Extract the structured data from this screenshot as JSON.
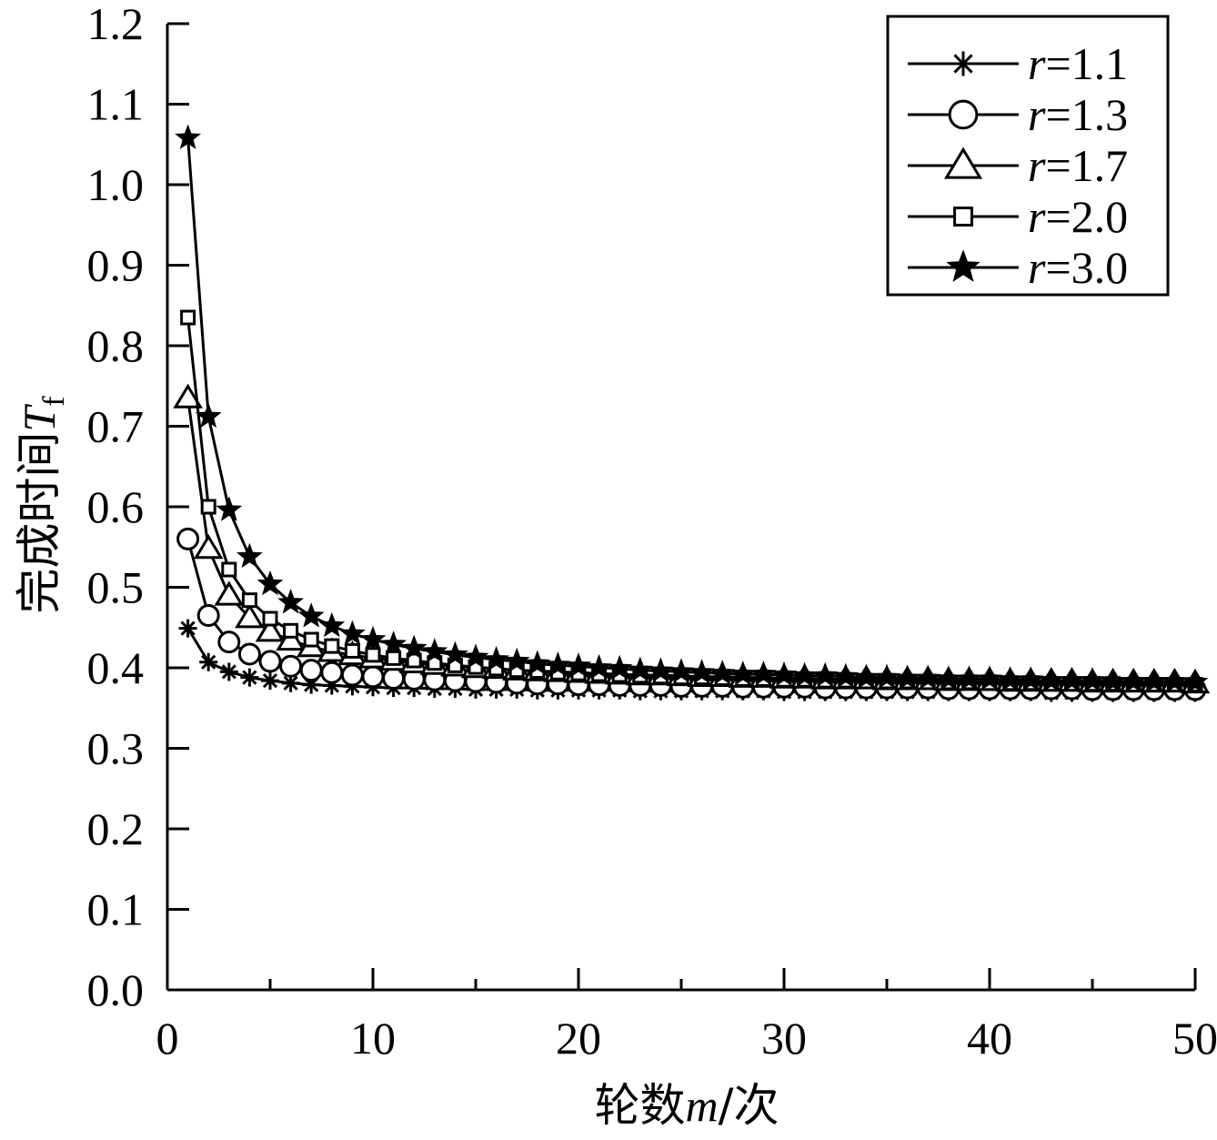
{
  "chart_data": {
    "type": "line",
    "title": "",
    "xlabel": {
      "prefix": "轮数",
      "var": "m",
      "suffix": "/次"
    },
    "ylabel": {
      "prefix": "完成时间",
      "var": "T",
      "sub": "f"
    },
    "xlim": [
      0,
      50
    ],
    "ylim": [
      0,
      1.2
    ],
    "x_ticks": [
      "0",
      "10",
      "20",
      "30",
      "40",
      "50"
    ],
    "y_ticks": [
      "0.0",
      "0.1",
      "0.2",
      "0.3",
      "0.4",
      "0.5",
      "0.6",
      "0.7",
      "0.8",
      "0.9",
      "1.0",
      "1.1",
      "1.2"
    ],
    "grid": false,
    "legend_position": "top-right",
    "x": [
      1,
      2,
      3,
      4,
      5,
      6,
      7,
      8,
      9,
      10,
      11,
      12,
      13,
      14,
      15,
      16,
      17,
      18,
      19,
      20,
      21,
      22,
      23,
      24,
      25,
      26,
      27,
      28,
      29,
      30,
      31,
      32,
      33,
      34,
      35,
      36,
      37,
      38,
      39,
      40,
      41,
      42,
      43,
      44,
      45,
      46,
      47,
      48,
      49,
      50
    ],
    "series": [
      {
        "name": "r=1.1",
        "var": "r",
        "eq": "=1.1",
        "marker": "asterisk",
        "values": [
          0.449,
          0.407,
          0.395,
          0.388,
          0.384,
          0.381,
          0.379,
          0.378,
          0.377,
          0.376,
          0.375,
          0.375,
          0.374,
          0.374,
          0.373,
          0.373,
          0.373,
          0.372,
          0.372,
          0.372,
          0.372,
          0.372,
          0.371,
          0.371,
          0.371,
          0.371,
          0.371,
          0.371,
          0.371,
          0.37,
          0.37,
          0.37,
          0.37,
          0.37,
          0.37,
          0.37,
          0.37,
          0.37,
          0.37,
          0.37,
          0.37,
          0.37,
          0.369,
          0.369,
          0.369,
          0.369,
          0.369,
          0.369,
          0.369,
          0.369
        ]
      },
      {
        "name": "r=1.3",
        "var": "r",
        "eq": "=1.3",
        "marker": "circle",
        "values": [
          0.56,
          0.465,
          0.432,
          0.417,
          0.408,
          0.402,
          0.397,
          0.394,
          0.391,
          0.389,
          0.387,
          0.386,
          0.385,
          0.384,
          0.383,
          0.382,
          0.381,
          0.38,
          0.38,
          0.379,
          0.379,
          0.378,
          0.378,
          0.378,
          0.377,
          0.377,
          0.377,
          0.376,
          0.376,
          0.376,
          0.376,
          0.375,
          0.375,
          0.375,
          0.375,
          0.375,
          0.375,
          0.374,
          0.374,
          0.374,
          0.374,
          0.374,
          0.374,
          0.374,
          0.373,
          0.373,
          0.373,
          0.373,
          0.373,
          0.373
        ]
      },
      {
        "name": "r=1.7",
        "var": "r",
        "eq": "=1.7",
        "marker": "triangle",
        "values": [
          0.735,
          0.548,
          0.49,
          0.462,
          0.445,
          0.434,
          0.426,
          0.42,
          0.416,
          0.412,
          0.409,
          0.406,
          0.404,
          0.402,
          0.4,
          0.399,
          0.397,
          0.396,
          0.395,
          0.394,
          0.393,
          0.392,
          0.391,
          0.391,
          0.39,
          0.389,
          0.389,
          0.388,
          0.388,
          0.387,
          0.387,
          0.386,
          0.386,
          0.386,
          0.385,
          0.385,
          0.385,
          0.384,
          0.384,
          0.384,
          0.383,
          0.383,
          0.383,
          0.383,
          0.382,
          0.382,
          0.382,
          0.382,
          0.382,
          0.381
        ]
      },
      {
        "name": "r=2.0",
        "var": "r",
        "eq": "=2.0",
        "marker": "square",
        "values": [
          0.835,
          0.6,
          0.522,
          0.484,
          0.461,
          0.446,
          0.435,
          0.427,
          0.421,
          0.416,
          0.412,
          0.409,
          0.406,
          0.403,
          0.401,
          0.399,
          0.397,
          0.396,
          0.394,
          0.393,
          0.392,
          0.391,
          0.39,
          0.389,
          0.388,
          0.388,
          0.387,
          0.386,
          0.386,
          0.385,
          0.385,
          0.384,
          0.384,
          0.383,
          0.383,
          0.383,
          0.382,
          0.382,
          0.382,
          0.381,
          0.381,
          0.381,
          0.38,
          0.38,
          0.38,
          0.38,
          0.379,
          0.379,
          0.379,
          0.379
        ]
      },
      {
        "name": "r=3.0",
        "var": "r",
        "eq": "=3.0",
        "marker": "star",
        "values": [
          1.058,
          0.712,
          0.596,
          0.538,
          0.504,
          0.481,
          0.464,
          0.452,
          0.442,
          0.435,
          0.429,
          0.424,
          0.42,
          0.416,
          0.413,
          0.41,
          0.408,
          0.405,
          0.403,
          0.402,
          0.4,
          0.399,
          0.397,
          0.396,
          0.395,
          0.394,
          0.393,
          0.392,
          0.392,
          0.391,
          0.39,
          0.39,
          0.389,
          0.388,
          0.388,
          0.387,
          0.387,
          0.386,
          0.386,
          0.386,
          0.385,
          0.385,
          0.384,
          0.384,
          0.384,
          0.383,
          0.383,
          0.383,
          0.383,
          0.382
        ]
      }
    ]
  }
}
